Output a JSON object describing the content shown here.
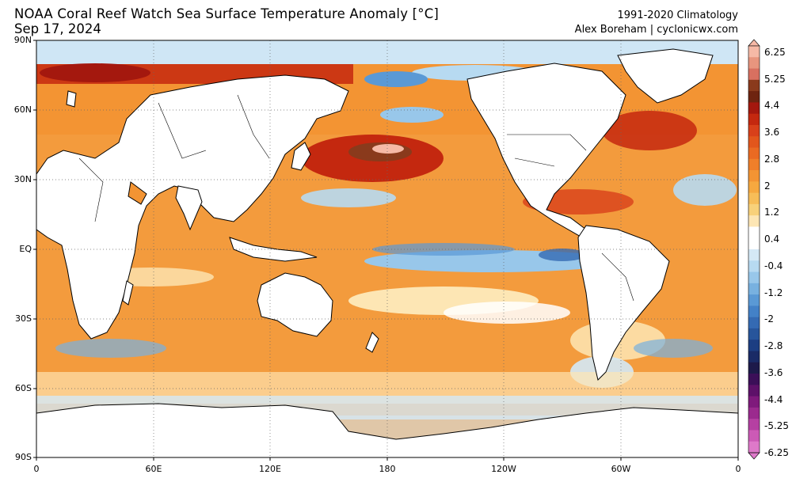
{
  "header": {
    "title": "NOAA Coral Reef Watch Sea Surface Temperature Anomaly [°C]",
    "date": "Sep 17, 2024",
    "climatology": "1991-2020 Climatology",
    "credit": "Alex Boreham | cyclonicwx.com"
  },
  "map": {
    "lat_labels": [
      "90N",
      "60N",
      "30N",
      "EQ",
      "30S",
      "60S",
      "90S"
    ],
    "lon_labels": [
      "0",
      "60E",
      "120E",
      "180",
      "120W",
      "60W",
      "0"
    ],
    "land_color": "#ffffff",
    "ice_color": "#cfe6f5"
  },
  "colorbar": {
    "labels": [
      "6.25",
      "5.25",
      "4.4",
      "3.6",
      "2.8",
      "2",
      "1.2",
      "0.4",
      "-0.4",
      "-1.2",
      "-2",
      "-2.8",
      "-3.6",
      "-4.4",
      "-5.25",
      "-6.25"
    ],
    "colors": [
      "#f6b9a6",
      "#e8957e",
      "#d87060",
      "#8a3a1c",
      "#6e2410",
      "#a4180e",
      "#c4280f",
      "#d8401a",
      "#e2561c",
      "#ea6a22",
      "#ef7f2a",
      "#f39433",
      "#f6a83f",
      "#f7bd58",
      "#f8d17a",
      "#fde6b4",
      "#ffffff",
      "#ffffff",
      "#d4e9f6",
      "#b7daf1",
      "#98c7ea",
      "#78b1e0",
      "#5a99d5",
      "#4381c7",
      "#346ab3",
      "#27559b",
      "#1c3e82",
      "#1a2b66",
      "#1d1a4a",
      "#3b0f58",
      "#5d1169",
      "#7f1a7c",
      "#9b2a8e",
      "#b540a2",
      "#cc5ab6",
      "#de79c9"
    ]
  }
}
